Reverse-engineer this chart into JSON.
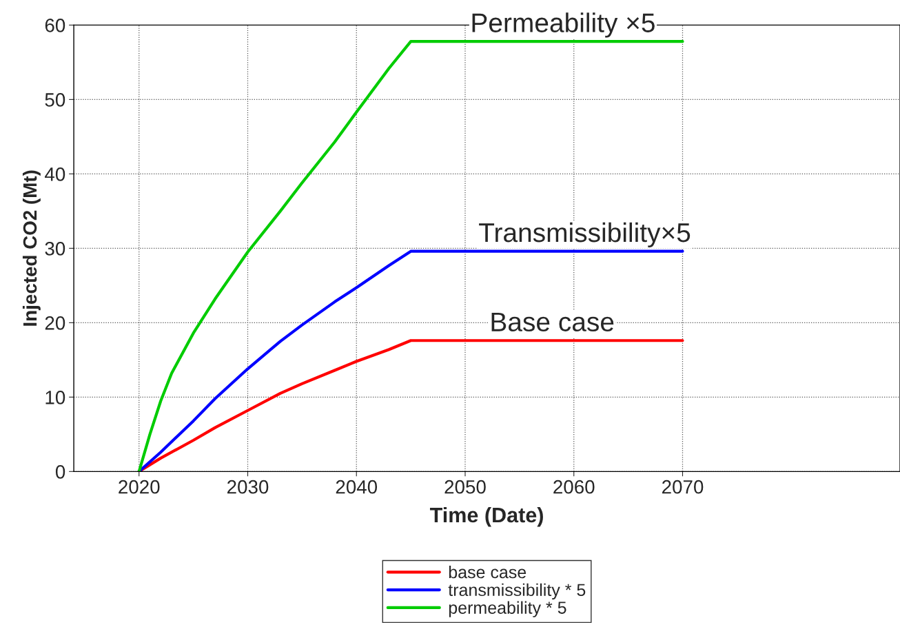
{
  "chart_data": {
    "type": "line",
    "xlabel": "Time (Date)",
    "ylabel": "Injected CO2 (Mt)",
    "xlim": [
      2014,
      2090
    ],
    "xticks": [
      2020,
      2030,
      2040,
      2050,
      2060,
      2070
    ],
    "ylim": [
      0,
      60
    ],
    "yticks": [
      0,
      10,
      20,
      30,
      40,
      50,
      60
    ],
    "grid": true,
    "legend": "bottom",
    "marker": "none",
    "line_style": "solid",
    "series": [
      {
        "name": "base case",
        "color": "#ff0000",
        "x": [
          2020,
          2022,
          2025,
          2027,
          2030,
          2033,
          2035,
          2038,
          2040,
          2043,
          2045,
          2070
        ],
        "values": [
          0,
          1.8,
          4.2,
          5.9,
          8.2,
          10.5,
          11.8,
          13.6,
          14.8,
          16.4,
          17.6,
          17.6
        ]
      },
      {
        "name": "transmissibility * 5",
        "color": "#0000ff",
        "x": [
          2020,
          2022,
          2025,
          2027,
          2030,
          2033,
          2035,
          2038,
          2040,
          2043,
          2045,
          2070
        ],
        "values": [
          0,
          2.6,
          6.8,
          9.8,
          13.8,
          17.5,
          19.7,
          22.8,
          24.7,
          27.7,
          29.6,
          29.6
        ]
      },
      {
        "name": "permeability * 5",
        "color": "#00cc00",
        "x": [
          2020,
          2021,
          2022,
          2023,
          2025,
          2027,
          2030,
          2033,
          2035,
          2038,
          2040,
          2043,
          2045,
          2070
        ],
        "values": [
          0,
          5.0,
          9.5,
          13.2,
          18.6,
          23.2,
          29.5,
          35.0,
          38.8,
          44.3,
          48.3,
          54.2,
          57.8,
          57.8
        ]
      }
    ],
    "annotations": [
      {
        "text": "Permeability ×5",
        "x": 2059,
        "y": 57.8
      },
      {
        "text": "Transmissibility×5",
        "x": 2061,
        "y": 29.6
      },
      {
        "text": "Base case",
        "x": 2058,
        "y": 17.6
      }
    ]
  }
}
